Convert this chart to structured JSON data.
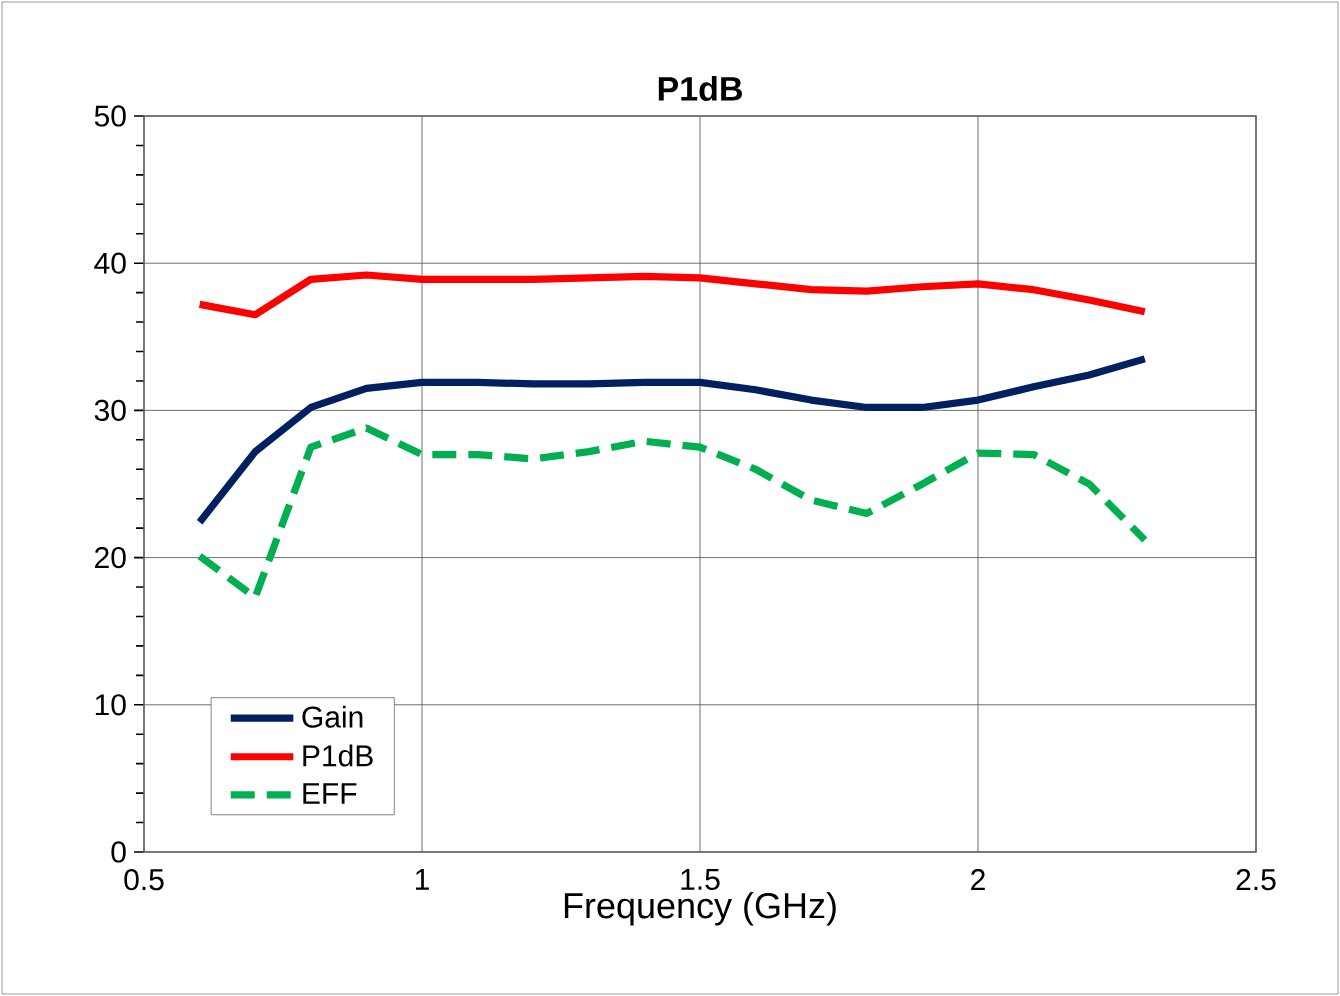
{
  "chart_data": {
    "type": "line",
    "title": "P1dB",
    "xlabel": "Frequency (GHz)",
    "x": [
      0.6,
      0.7,
      0.8,
      0.9,
      1.0,
      1.1,
      1.2,
      1.3,
      1.4,
      1.5,
      1.6,
      1.7,
      1.8,
      1.9,
      2.0,
      2.1,
      2.2,
      2.3
    ],
    "series": [
      {
        "name": "Gain",
        "color": "#002060",
        "line_style": "solid",
        "values": [
          22.4,
          27.2,
          30.2,
          31.5,
          31.9,
          31.9,
          31.8,
          31.8,
          31.9,
          31.9,
          31.4,
          30.7,
          30.2,
          30.2,
          30.7,
          31.6,
          32.4,
          33.5
        ]
      },
      {
        "name": "P1dB",
        "color": "#ff0000",
        "line_style": "solid",
        "values": [
          37.2,
          36.5,
          38.9,
          39.2,
          38.9,
          38.9,
          38.9,
          39.0,
          39.1,
          39.0,
          38.6,
          38.2,
          38.1,
          38.4,
          38.6,
          38.2,
          37.5,
          36.7
        ]
      },
      {
        "name": "EFF",
        "color": "#00b050",
        "line_style": "dashed",
        "values": [
          20.1,
          17.3,
          27.5,
          28.8,
          27.0,
          27.0,
          26.7,
          27.2,
          27.9,
          27.5,
          26.0,
          23.9,
          23.0,
          25.0,
          27.1,
          27.0,
          25.0,
          21.2
        ]
      }
    ],
    "xlim": [
      0.5,
      2.5
    ],
    "ylim": [
      0,
      50
    ],
    "xticks": [
      0.5,
      1,
      1.5,
      2,
      2.5
    ],
    "yticks": [
      0,
      10,
      20,
      30,
      40,
      50
    ],
    "grid": true,
    "legend": "bottom left"
  }
}
